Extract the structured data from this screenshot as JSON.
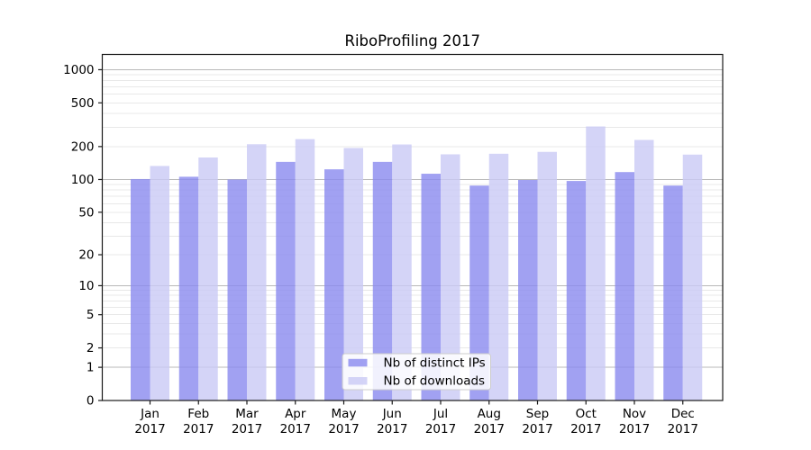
{
  "chart_data": {
    "type": "bar",
    "title": "RiboProfiling 2017",
    "categories": [
      "Jan 2017",
      "Feb 2017",
      "Mar 2017",
      "Apr 2017",
      "May 2017",
      "Jun 2017",
      "Jul 2017",
      "Aug 2017",
      "Sep 2017",
      "Oct 2017",
      "Nov 2017",
      "Dec 2017"
    ],
    "x_ticks": [
      {
        "month": "Jan",
        "year": "2017"
      },
      {
        "month": "Feb",
        "year": "2017"
      },
      {
        "month": "Mar",
        "year": "2017"
      },
      {
        "month": "Apr",
        "year": "2017"
      },
      {
        "month": "May",
        "year": "2017"
      },
      {
        "month": "Jun",
        "year": "2017"
      },
      {
        "month": "Jul",
        "year": "2017"
      },
      {
        "month": "Aug",
        "year": "2017"
      },
      {
        "month": "Sep",
        "year": "2017"
      },
      {
        "month": "Oct",
        "year": "2017"
      },
      {
        "month": "Nov",
        "year": "2017"
      },
      {
        "month": "Dec",
        "year": "2017"
      }
    ],
    "series": [
      {
        "name": "Nb of distinct IPs",
        "color": "#8a8aef",
        "values": [
          101,
          106,
          100,
          145,
          124,
          145,
          113,
          88,
          99,
          97,
          117,
          88
        ]
      },
      {
        "name": "Nb of downloads",
        "color": "#c9c9f5",
        "values": [
          133,
          159,
          210,
          234,
          194,
          209,
          170,
          172,
          179,
          305,
          230,
          169
        ]
      }
    ],
    "yscale": "log1p",
    "y_ticks": [
      {
        "label": "1000",
        "value": 1000
      },
      {
        "label": "500",
        "value": 500
      },
      {
        "label": "200",
        "value": 200
      },
      {
        "label": "100",
        "value": 100
      },
      {
        "label": "50",
        "value": 50
      },
      {
        "label": "20",
        "value": 20
      },
      {
        "label": "10",
        "value": 10
      },
      {
        "label": "5",
        "value": 5
      },
      {
        "label": "2",
        "value": 2
      },
      {
        "label": "1",
        "value": 1
      },
      {
        "label": "0",
        "value": 0
      }
    ],
    "ylim": [
      0,
      1330
    ],
    "xlabel": "",
    "ylabel": "",
    "grid": true,
    "legend_position": "lower center",
    "colors": {
      "grid_major": "#b8b8b8",
      "grid_minor": "#e8e8e8",
      "axis_frame": "#1a1a1a",
      "legend_border": "#cccccc",
      "legend_background": "#ffffff"
    }
  }
}
